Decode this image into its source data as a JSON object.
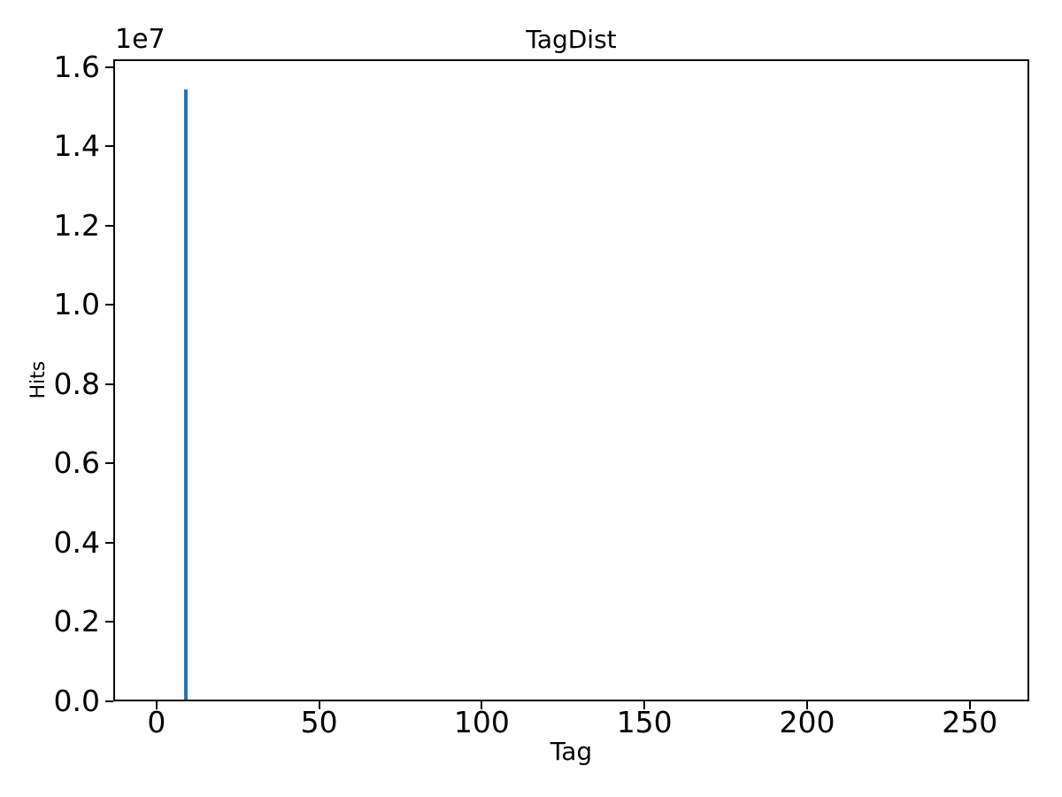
{
  "chart_data": {
    "type": "bar",
    "title": "TagDist",
    "xlabel": "Tag",
    "ylabel": "Hits",
    "y_scale_offset": "1e7",
    "grid": false,
    "legend": null,
    "xlim": [
      -13.3,
      268.3
    ],
    "ylim": [
      0,
      16190000
    ],
    "x_ticks": [
      {
        "value": 0,
        "label": "0"
      },
      {
        "value": 50,
        "label": "50"
      },
      {
        "value": 100,
        "label": "100"
      },
      {
        "value": 150,
        "label": "150"
      },
      {
        "value": 200,
        "label": "200"
      },
      {
        "value": 250,
        "label": "250"
      }
    ],
    "y_ticks": [
      {
        "value": 0,
        "label": "0.0"
      },
      {
        "value": 2000000,
        "label": "0.2"
      },
      {
        "value": 4000000,
        "label": "0.4"
      },
      {
        "value": 6000000,
        "label": "0.6"
      },
      {
        "value": 8000000,
        "label": "0.8"
      },
      {
        "value": 10000000,
        "label": "1.0"
      },
      {
        "value": 12000000,
        "label": "1.2"
      },
      {
        "value": 14000000,
        "label": "1.4"
      },
      {
        "value": 16000000,
        "label": "1.6"
      }
    ],
    "bars": [
      {
        "x_left": 8.35,
        "bin_width": 1.25,
        "value": 15420000,
        "tag": 9
      }
    ],
    "bar_color": "#1f77b4",
    "spine_color": "#000000",
    "text_color": "#000000",
    "background_color": "#ffffff"
  }
}
